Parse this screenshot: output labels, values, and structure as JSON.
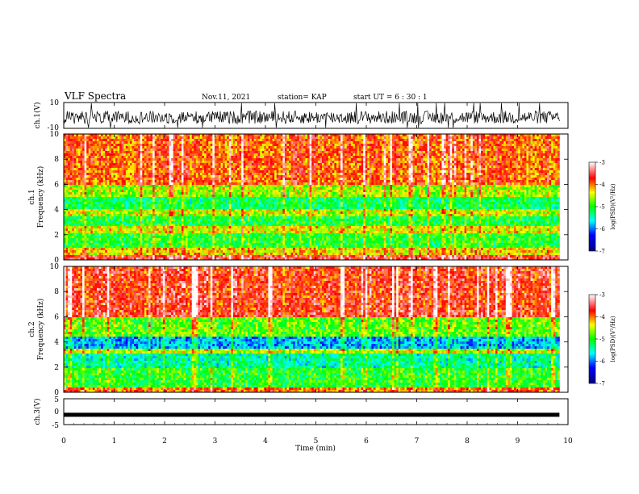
{
  "header": {
    "title": "VLF Spectra",
    "date": "Nov.11, 2021",
    "station": "station= KAP",
    "start": "start  UT =   6 : 30 : 1"
  },
  "chart_data": [
    {
      "type": "line",
      "ylabel": "ch.1(V)",
      "ylim": [
        -10,
        10
      ],
      "y_tick_labels": [
        "10",
        "-10"
      ],
      "xlim": [
        0,
        10
      ],
      "trace_span_min": [
        0,
        9.83
      ],
      "mean": -1.5,
      "noise_range": [
        -6,
        4
      ]
    },
    {
      "type": "heatmap",
      "ylabel": "ch.1\nFrequency (kHz)",
      "ylim": [
        0,
        10
      ],
      "y_tick_labels": [
        "0",
        "2",
        "4",
        "6",
        "8",
        "10"
      ],
      "xlim": [
        0,
        10
      ],
      "data_span_min": [
        0,
        9.83
      ],
      "colorbar": {
        "label": "log(PSD)(V²/Hz)",
        "range": [
          -7,
          -3
        ],
        "tick_labels": [
          "-3",
          "-4",
          "-5",
          "-6",
          "-7"
        ]
      },
      "bands_khz": [
        {
          "from": 0,
          "to": 0.4,
          "log_psd": -3.6
        },
        {
          "from": 0.4,
          "to": 1.0,
          "log_psd": -4.3
        },
        {
          "from": 1.0,
          "to": 2.2,
          "log_psd": -5.0
        },
        {
          "from": 2.2,
          "to": 2.7,
          "log_psd": -4.4
        },
        {
          "from": 2.7,
          "to": 3.4,
          "log_psd": -5.1
        },
        {
          "from": 3.4,
          "to": 4.0,
          "log_psd": -4.5
        },
        {
          "from": 4.0,
          "to": 5.0,
          "log_psd": -5.2
        },
        {
          "from": 5.0,
          "to": 6.0,
          "log_psd": -4.6
        },
        {
          "from": 6.0,
          "to": 10.0,
          "log_psd": -3.9
        }
      ]
    },
    {
      "type": "heatmap",
      "ylabel": "ch.2\nFrequency (kHz)",
      "ylim": [
        0,
        10
      ],
      "y_tick_labels": [
        "0",
        "2",
        "4",
        "6",
        "8",
        "10"
      ],
      "xlim": [
        0,
        10
      ],
      "data_span_min": [
        0,
        9.83
      ],
      "colorbar": {
        "label": "log(PSD)(V²/Hz)",
        "range": [
          -7,
          -3
        ],
        "tick_labels": [
          "-3",
          "-4",
          "-5",
          "-6",
          "-7"
        ]
      },
      "bands_khz": [
        {
          "from": 0,
          "to": 0.4,
          "log_psd": -4.0
        },
        {
          "from": 0.4,
          "to": 2.0,
          "log_psd": -5.0
        },
        {
          "from": 2.0,
          "to": 3.0,
          "log_psd": -5.4
        },
        {
          "from": 3.0,
          "to": 3.5,
          "log_psd": -4.5
        },
        {
          "from": 3.5,
          "to": 4.5,
          "log_psd": -5.8
        },
        {
          "from": 4.5,
          "to": 6.0,
          "log_psd": -4.8
        },
        {
          "from": 6.0,
          "to": 10.0,
          "log_psd": -3.7
        }
      ]
    },
    {
      "type": "line",
      "ylabel": "ch.3(V)",
      "ylim": [
        -5,
        5
      ],
      "y_tick_labels": [
        "5",
        "0",
        "-5"
      ],
      "xlim": [
        0,
        10
      ],
      "xlabel": "Time (min)",
      "x_tick_labels": [
        "0",
        "1",
        "2",
        "3",
        "4",
        "5",
        "6",
        "7",
        "8",
        "9",
        "10"
      ],
      "trace_span_min": [
        0,
        9.83
      ],
      "constant_value": -1.2
    }
  ]
}
